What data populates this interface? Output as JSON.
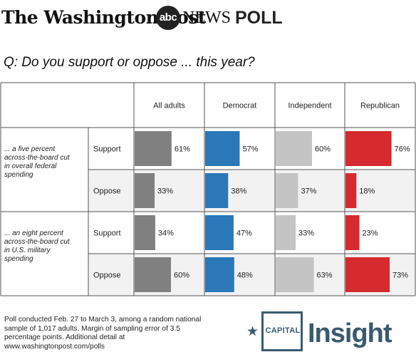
{
  "header": {
    "publisher": "The Washington Post",
    "partner_logo": "abc",
    "partner_name": "NEWS",
    "poll_label": "POLL"
  },
  "question": "Q: Do you support or oppose ... this year?",
  "chart_data": {
    "type": "bar",
    "columns": [
      "All adults",
      "Democrat",
      "Independent",
      "Republican"
    ],
    "items": [
      {
        "label": "... a five percent across-the-board cut in overall federal spending",
        "responses": [
          "Support",
          "Oppose"
        ]
      },
      {
        "label": "... an eight percent across-the-board cut in U.S. military spending",
        "responses": [
          "Support",
          "Oppose"
        ]
      }
    ],
    "series": [
      {
        "name": "All adults",
        "color": "#808080",
        "values": [
          61,
          33,
          34,
          60
        ]
      },
      {
        "name": "Democrat",
        "color": "#2b78b8",
        "values": [
          57,
          38,
          47,
          48
        ]
      },
      {
        "name": "Independent",
        "color": "#c4c4c4",
        "values": [
          60,
          37,
          33,
          63
        ]
      },
      {
        "name": "Republican",
        "color": "#d52b2e",
        "values": [
          76,
          18,
          23,
          73
        ]
      }
    ],
    "value_suffix": "%",
    "xlim": [
      0,
      100
    ],
    "row_shading": [
      "#ffffff",
      "#f2f2f2"
    ]
  },
  "footer": {
    "note": "Poll conducted Feb. 27 to March 3, among a random national sample of 1,017 adults. Margin of sampling error of 3.5 percentage points. Additional detail at www.washingtonpost.com/polls",
    "brand_top": "CAPITAL",
    "brand_bottom": "Insight",
    "brand_color": "#3a5a6e",
    "star_icon": "star-icon"
  }
}
